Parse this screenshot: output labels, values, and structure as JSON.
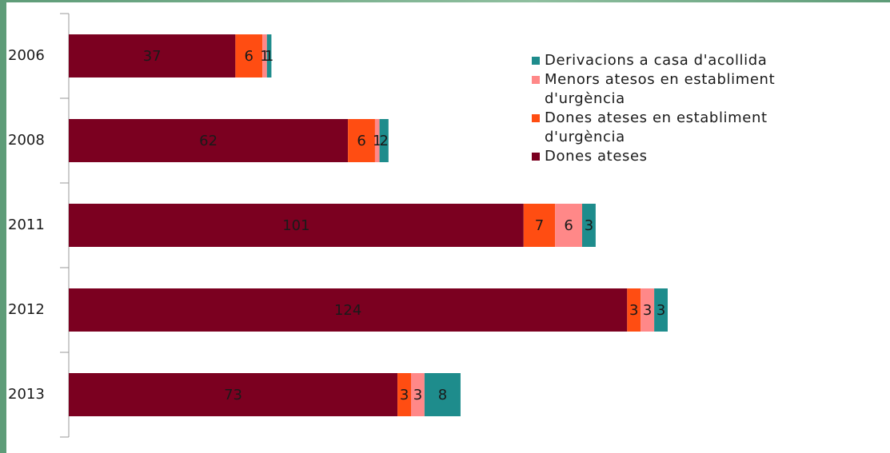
{
  "chart_data": {
    "type": "stacked-barh",
    "categories": [
      "2006",
      "2008",
      "2011",
      "2012",
      "2013"
    ],
    "series": [
      {
        "name": "Dones ateses",
        "color": "#7b0020",
        "values": [
          37,
          62,
          101,
          124,
          73
        ]
      },
      {
        "name": "Dones ateses en establiment d'urgència",
        "color": "#ff4d12",
        "values": [
          6,
          6,
          7,
          3,
          3
        ]
      },
      {
        "name": "Menors atesos en establiment d'urgència",
        "color": "#ff8888",
        "values": [
          1,
          1,
          6,
          3,
          3
        ]
      },
      {
        "name": "Derivacions a casa d'acollida",
        "color": "#1e8c8c",
        "values": [
          1,
          2,
          3,
          3,
          8
        ]
      }
    ]
  }
}
